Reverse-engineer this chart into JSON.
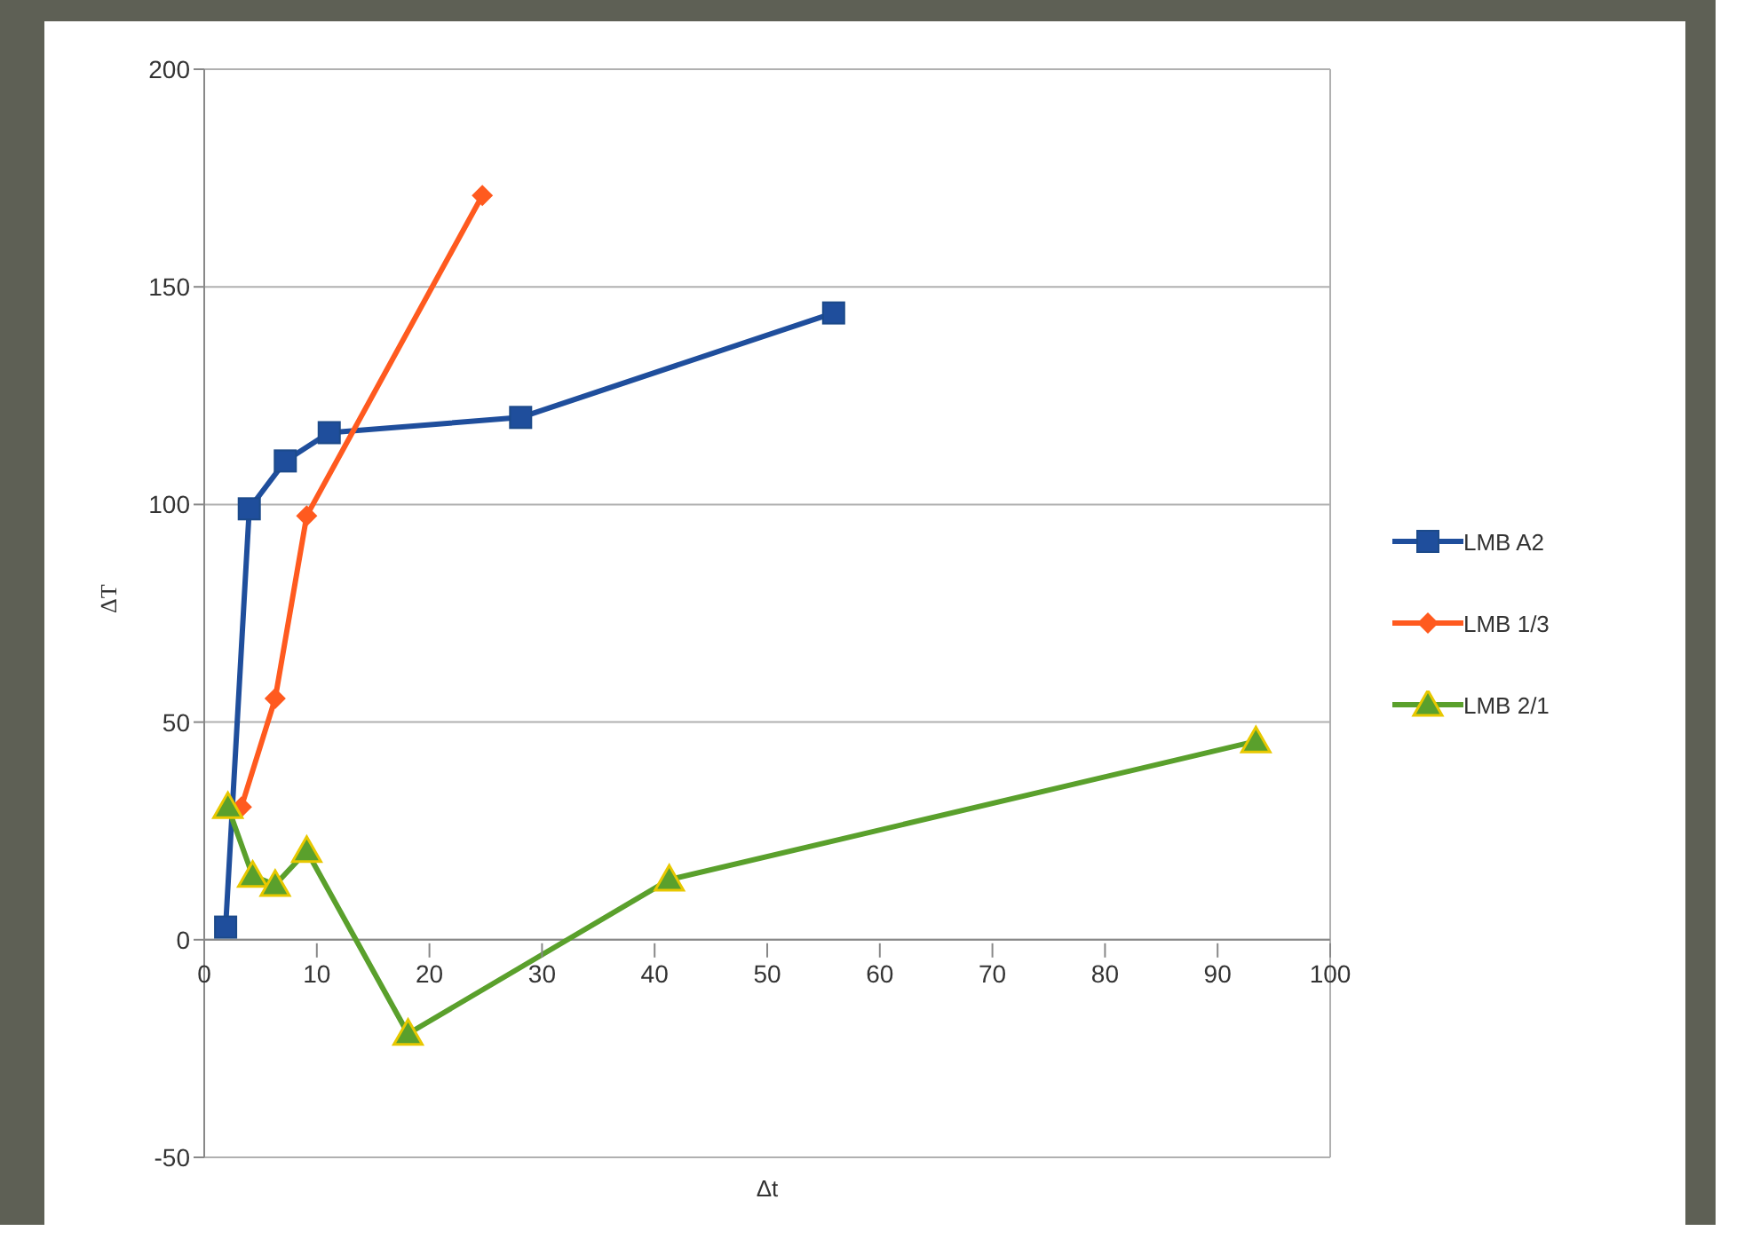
{
  "chart_data": {
    "type": "line",
    "xlabel": "Δt",
    "ylabel": "ΔT",
    "xlim": [
      0,
      100
    ],
    "xticks": [
      0,
      10,
      20,
      30,
      40,
      50,
      60,
      70,
      80,
      90,
      100
    ],
    "ylim": [
      -50,
      200
    ],
    "yticks": [
      -50,
      0,
      50,
      100,
      150,
      200
    ],
    "grid": "y",
    "legend": "right",
    "series": [
      {
        "name": "LMB A2",
        "color": "#1f4e9c",
        "marker": "square",
        "x": [
          1.9,
          4.0,
          7.2,
          11.1,
          28.1,
          55.9
        ],
        "values": [
          2.9,
          99,
          110,
          116.5,
          120,
          144
        ]
      },
      {
        "name": "LMB 1/3",
        "color": "#ff5a1f",
        "marker": "diamond",
        "x": [
          3.3,
          6.3,
          9.1,
          24.7
        ],
        "values": [
          30.5,
          55.4,
          97.4,
          171
        ]
      },
      {
        "name": "LMB 2/1",
        "color": "#5aa02c",
        "marker": "triangle",
        "x": [
          2.1,
          4.3,
          6.3,
          9.1,
          18.1,
          41.3,
          93.4
        ],
        "values": [
          30.5,
          14.7,
          12.6,
          20.4,
          -21.6,
          13.8,
          45.6
        ]
      }
    ]
  }
}
